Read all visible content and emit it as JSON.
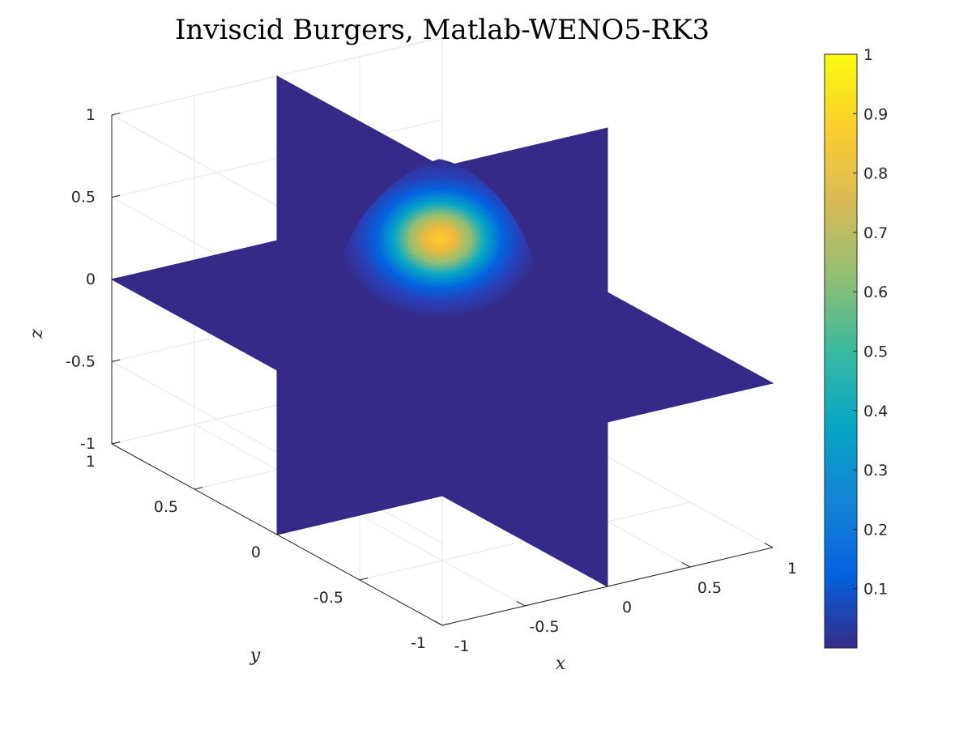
{
  "chart_data": {
    "type": "heatmap",
    "subtype": "3d-orthogonal-slice",
    "title": "Inviscid Burgers, Matlab-WENO5-RK3",
    "xlabel": "x",
    "ylabel": "y",
    "zlabel": "z",
    "xlim": [
      -1,
      1
    ],
    "ylim": [
      -1,
      1
    ],
    "zlim": [
      -1,
      1
    ],
    "x_ticks": [
      "-1",
      "-0.5",
      "0",
      "0.5",
      "1"
    ],
    "y_ticks": [
      "-1",
      "-0.5",
      "0",
      "0.5",
      "1"
    ],
    "z_ticks": [
      "-1",
      "-0.5",
      "0",
      "0.5",
      "1"
    ],
    "slices": {
      "x": 0,
      "y": 0,
      "z": 0
    },
    "color_range": [
      0,
      1
    ],
    "colorbar": {
      "ticks": [
        "0.1",
        "0.2",
        "0.3",
        "0.4",
        "0.5",
        "0.6",
        "0.7",
        "0.8",
        "0.9",
        "1"
      ],
      "colormap": "parula",
      "colors": [
        "#352a87",
        "#0363e1",
        "#1485d4",
        "#06a7c6",
        "#38b99e",
        "#92bf73",
        "#d9ba56",
        "#fcce2e",
        "#f9fb0e"
      ]
    },
    "peak": {
      "value": 0.9,
      "x": 0.4,
      "y": 0.4,
      "z": 0.2
    },
    "grid": true,
    "background_value_color": "#352a87"
  }
}
